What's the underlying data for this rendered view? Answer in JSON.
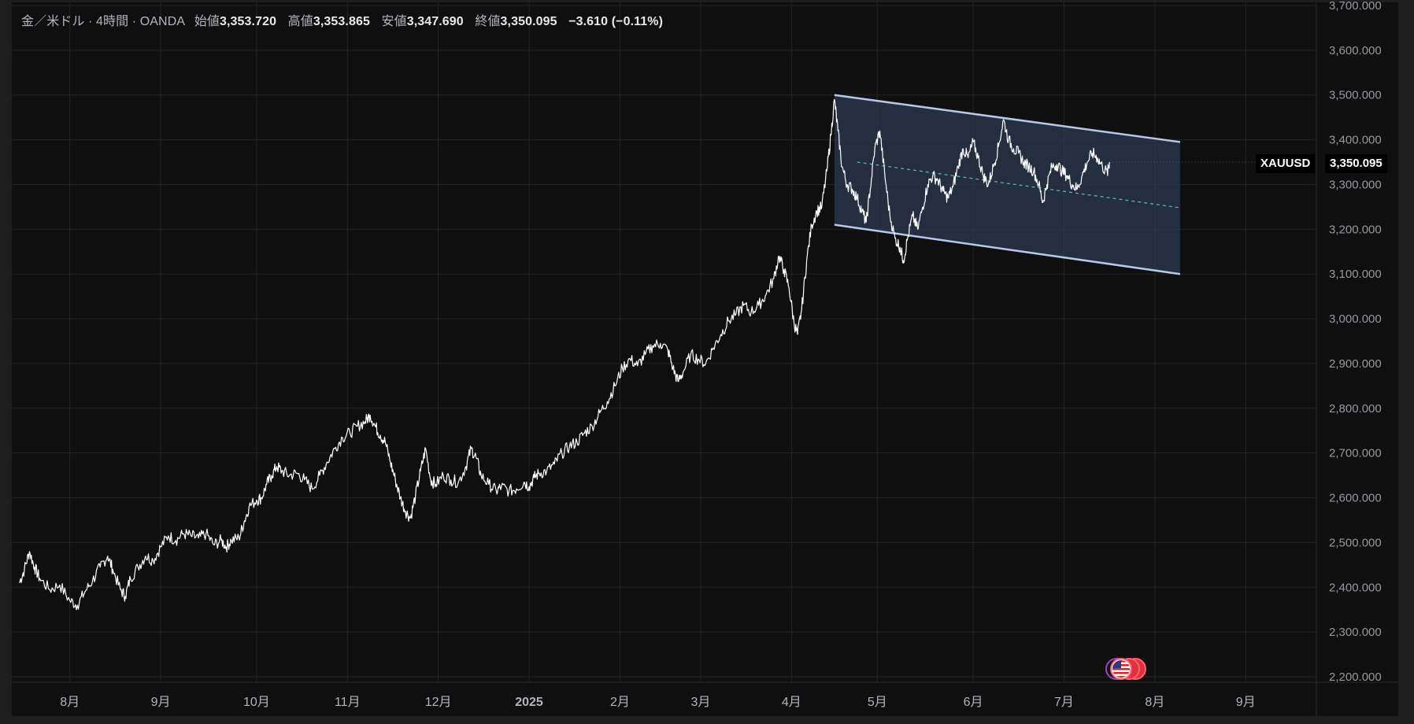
{
  "legend": {
    "symbol_desc": "金／米ドル · 4時間 · OANDA",
    "open_label": "始値",
    "open_value": "3,353.720",
    "high_label": "高値",
    "high_value": "3,353.865",
    "low_label": "安値",
    "low_value": "3,347.690",
    "close_label": "終値",
    "close_value": "3,350.095",
    "change": "−3.610 (−0.11%)"
  },
  "price_tag": {
    "symbol": "XAUUSD",
    "price": "3,350.095"
  },
  "colors": {
    "background": "#0f0f0f",
    "grid": "#242424",
    "line": "#ffffff",
    "channel_stroke": "#b8c8e8",
    "channel_fill": "#2e3a50",
    "midline": "#5fb8c8",
    "event_badge": "#e0303a"
  },
  "event_badge_icon": "us-flag-icon",
  "chart_data": {
    "type": "line",
    "series": [
      {
        "values": [
          [
            0.0,
            2410
          ],
          [
            0.1,
            2440
          ],
          [
            0.2,
            2480
          ],
          [
            0.3,
            2445
          ],
          [
            0.4,
            2420
          ],
          [
            0.6,
            2395
          ],
          [
            0.8,
            2405
          ],
          [
            1.0,
            2370
          ],
          [
            1.15,
            2360
          ],
          [
            1.3,
            2390
          ],
          [
            1.45,
            2415
          ],
          [
            1.6,
            2445
          ],
          [
            1.75,
            2470
          ],
          [
            1.85,
            2440
          ],
          [
            2.0,
            2395
          ],
          [
            2.1,
            2380
          ],
          [
            2.2,
            2420
          ],
          [
            2.35,
            2445
          ],
          [
            2.5,
            2470
          ],
          [
            2.65,
            2460
          ],
          [
            2.8,
            2490
          ],
          [
            2.95,
            2515
          ],
          [
            3.1,
            2505
          ],
          [
            3.25,
            2520
          ],
          [
            3.4,
            2515
          ],
          [
            3.55,
            2510
          ],
          [
            3.7,
            2520
          ],
          [
            3.85,
            2495
          ],
          [
            4.0,
            2505
          ],
          [
            4.1,
            2490
          ],
          [
            4.2,
            2505
          ],
          [
            4.35,
            2510
          ],
          [
            4.45,
            2545
          ],
          [
            4.55,
            2580
          ],
          [
            4.7,
            2595
          ],
          [
            4.8,
            2600
          ],
          [
            4.9,
            2630
          ],
          [
            5.0,
            2650
          ],
          [
            5.1,
            2670
          ],
          [
            5.2,
            2660
          ],
          [
            5.35,
            2650
          ],
          [
            5.5,
            2655
          ],
          [
            5.65,
            2640
          ],
          [
            5.8,
            2620
          ],
          [
            5.95,
            2650
          ],
          [
            6.1,
            2680
          ],
          [
            6.25,
            2710
          ],
          [
            6.4,
            2735
          ],
          [
            6.55,
            2745
          ],
          [
            6.7,
            2760
          ],
          [
            6.85,
            2770
          ],
          [
            6.95,
            2785
          ],
          [
            7.05,
            2760
          ],
          [
            7.15,
            2740
          ],
          [
            7.25,
            2725
          ],
          [
            7.35,
            2680
          ],
          [
            7.45,
            2640
          ],
          [
            7.55,
            2600
          ],
          [
            7.65,
            2570
          ],
          [
            7.75,
            2555
          ],
          [
            7.85,
            2605
          ],
          [
            7.95,
            2660
          ],
          [
            8.05,
            2710
          ],
          [
            8.15,
            2640
          ],
          [
            8.25,
            2630
          ],
          [
            8.4,
            2650
          ],
          [
            8.55,
            2640
          ],
          [
            8.7,
            2635
          ],
          [
            8.85,
            2670
          ],
          [
            8.95,
            2710
          ],
          [
            9.05,
            2690
          ],
          [
            9.15,
            2650
          ],
          [
            9.3,
            2630
          ],
          [
            9.45,
            2615
          ],
          [
            9.55,
            2625
          ],
          [
            9.7,
            2615
          ],
          [
            9.85,
            2620
          ],
          [
            10.0,
            2635
          ],
          [
            10.1,
            2625
          ],
          [
            10.2,
            2645
          ],
          [
            10.3,
            2655
          ],
          [
            10.45,
            2660
          ],
          [
            10.6,
            2675
          ],
          [
            10.75,
            2700
          ],
          [
            10.9,
            2715
          ],
          [
            11.05,
            2725
          ],
          [
            11.2,
            2745
          ],
          [
            11.35,
            2760
          ],
          [
            11.5,
            2790
          ],
          [
            11.65,
            2815
          ],
          [
            11.8,
            2850
          ],
          [
            11.95,
            2890
          ],
          [
            12.1,
            2910
          ],
          [
            12.25,
            2895
          ],
          [
            12.4,
            2920
          ],
          [
            12.55,
            2940
          ],
          [
            12.7,
            2945
          ],
          [
            12.85,
            2930
          ],
          [
            12.95,
            2890
          ],
          [
            13.05,
            2860
          ],
          [
            13.15,
            2880
          ],
          [
            13.3,
            2920
          ],
          [
            13.45,
            2910
          ],
          [
            13.6,
            2900
          ],
          [
            13.75,
            2935
          ],
          [
            13.9,
            2965
          ],
          [
            14.05,
            2995
          ],
          [
            14.2,
            3010
          ],
          [
            14.35,
            3030
          ],
          [
            14.5,
            3015
          ],
          [
            14.65,
            3030
          ],
          [
            14.8,
            3055
          ],
          [
            14.95,
            3090
          ],
          [
            15.05,
            3140
          ],
          [
            15.15,
            3110
          ],
          [
            15.25,
            3070
          ],
          [
            15.35,
            2990
          ],
          [
            15.42,
            2965
          ],
          [
            15.5,
            3020
          ],
          [
            15.6,
            3130
          ],
          [
            15.7,
            3210
          ],
          [
            15.8,
            3240
          ],
          [
            15.9,
            3250
          ],
          [
            16.0,
            3330
          ],
          [
            16.08,
            3410
          ],
          [
            16.15,
            3490
          ],
          [
            16.22,
            3420
          ],
          [
            16.3,
            3340
          ],
          [
            16.4,
            3300
          ],
          [
            16.5,
            3290
          ],
          [
            16.6,
            3270
          ],
          [
            16.7,
            3240
          ],
          [
            16.78,
            3215
          ],
          [
            16.86,
            3290
          ],
          [
            16.95,
            3380
          ],
          [
            17.05,
            3420
          ],
          [
            17.15,
            3320
          ],
          [
            17.25,
            3230
          ],
          [
            17.35,
            3180
          ],
          [
            17.45,
            3160
          ],
          [
            17.52,
            3130
          ],
          [
            17.6,
            3180
          ],
          [
            17.7,
            3230
          ],
          [
            17.8,
            3200
          ],
          [
            17.9,
            3250
          ],
          [
            18.0,
            3300
          ],
          [
            18.1,
            3320
          ],
          [
            18.2,
            3310
          ],
          [
            18.3,
            3285
          ],
          [
            18.4,
            3270
          ],
          [
            18.5,
            3295
          ],
          [
            18.6,
            3340
          ],
          [
            18.7,
            3380
          ],
          [
            18.8,
            3360
          ],
          [
            18.9,
            3395
          ],
          [
            19.0,
            3360
          ],
          [
            19.1,
            3320
          ],
          [
            19.2,
            3300
          ],
          [
            19.3,
            3340
          ],
          [
            19.4,
            3385
          ],
          [
            19.5,
            3445
          ],
          [
            19.6,
            3400
          ],
          [
            19.7,
            3380
          ],
          [
            19.8,
            3370
          ],
          [
            19.9,
            3350
          ],
          [
            20.0,
            3340
          ],
          [
            20.1,
            3330
          ],
          [
            20.2,
            3300
          ],
          [
            20.28,
            3260
          ],
          [
            20.36,
            3300
          ],
          [
            20.46,
            3340
          ],
          [
            20.56,
            3345
          ],
          [
            20.66,
            3330
          ],
          [
            20.76,
            3320
          ],
          [
            20.86,
            3300
          ],
          [
            20.96,
            3290
          ],
          [
            21.06,
            3320
          ],
          [
            21.16,
            3350
          ],
          [
            21.26,
            3370
          ],
          [
            21.36,
            3360
          ],
          [
            21.46,
            3340
          ],
          [
            21.56,
            3325
          ],
          [
            21.6,
            3350
          ]
        ]
      }
    ],
    "ylim": [
      2190,
      3700
    ],
    "yticks": [
      "3,700.000",
      "3,600.000",
      "3,500.000",
      "3,400.000",
      "3,300.000",
      "3,200.000",
      "3,100.000",
      "3,000.000",
      "2,900.000",
      "2,800.000",
      "2,700.000",
      "2,600.000",
      "2,500.000",
      "2,400.000",
      "2,300.000",
      "2,200.000"
    ],
    "ytick_values": [
      3700,
      3600,
      3500,
      3400,
      3300,
      3200,
      3100,
      3000,
      2900,
      2800,
      2700,
      2600,
      2500,
      2400,
      2300,
      2200
    ],
    "xticks": [
      "8月",
      "9月",
      "10月",
      "11月",
      "12月",
      "2025",
      "2月",
      "3月",
      "4月",
      "5月",
      "6月",
      "7月",
      "8月",
      "9月"
    ],
    "xtick_values": [
      1.0,
      2.8,
      4.7,
      6.5,
      8.3,
      10.1,
      11.9,
      13.5,
      15.3,
      17.0,
      18.9,
      20.7,
      22.5,
      24.3
    ],
    "xlim": [
      -0.15,
      25.7
    ],
    "channel": {
      "upper": [
        [
          16.15,
          3500
        ],
        [
          23.0,
          3395
        ]
      ],
      "lower": [
        [
          16.15,
          3210
        ],
        [
          23.0,
          3100
        ]
      ],
      "midline": [
        [
          16.6,
          3350
        ],
        [
          23.0,
          3248
        ]
      ]
    },
    "last_price": 3350.095,
    "grid": true
  }
}
